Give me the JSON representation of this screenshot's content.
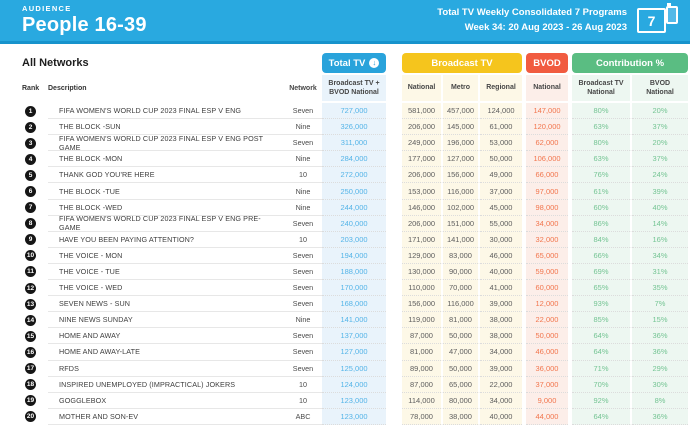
{
  "header": {
    "eyebrow": "AUDIENCE",
    "title": "People 16-39",
    "report_line1": "Total TV Weekly Consolidated 7 Programs",
    "report_line2": "Week 34: 20 Aug 2023 - 26 Aug 2023",
    "programs_count": "7"
  },
  "filters": {
    "network_selector": "All Networks"
  },
  "icons": {
    "sort_descending": "↓"
  },
  "colors": {
    "topbar": "#29A9E0",
    "total_tv": "#29A3DB",
    "broadcast_tv": "#F5C51D",
    "bvod": "#F15B40",
    "contribution": "#5ABD82",
    "total_tv_value": "#54B4E8",
    "bvod_value": "#F2764E",
    "contribution_value": "#74C493"
  },
  "table": {
    "row_headers": {
      "rank": "Rank",
      "description": "Description",
      "network": "Network"
    },
    "groups": {
      "total_tv": "Total TV",
      "broadcast_tv": "Broadcast TV",
      "bvod": "BVOD",
      "contribution": "Contribution %"
    },
    "subcolumns": {
      "total_tv_line1": "Broadcast TV +",
      "total_tv_line2": "BVOD National",
      "broadcast_national": "National",
      "broadcast_metro": "Metro",
      "broadcast_regional": "Regional",
      "bvod_national": "National",
      "contribution_broadcast_line1": "Broadcast TV",
      "contribution_broadcast_line2": "National",
      "contribution_bvod_line1": "BVOD",
      "contribution_bvod_line2": "National"
    }
  },
  "rows": [
    {
      "rank": "1",
      "description": "FIFA WOMEN'S WORLD CUP 2023 FINAL ESP V ENG",
      "network": "Seven",
      "total_tv": "727,000",
      "national": "581,000",
      "metro": "457,000",
      "regional": "124,000",
      "bvod": "147,000",
      "contribution_broadcast": "80%",
      "contribution_bvod": "20%"
    },
    {
      "rank": "2",
      "description": "THE BLOCK -SUN",
      "network": "Nine",
      "total_tv": "326,000",
      "national": "206,000",
      "metro": "145,000",
      "regional": "61,000",
      "bvod": "120,000",
      "contribution_broadcast": "63%",
      "contribution_bvod": "37%"
    },
    {
      "rank": "3",
      "description": "FIFA WOMEN'S WORLD CUP 2023 FINAL ESP V ENG POST GAME",
      "network": "Seven",
      "total_tv": "311,000",
      "national": "249,000",
      "metro": "196,000",
      "regional": "53,000",
      "bvod": "62,000",
      "contribution_broadcast": "80%",
      "contribution_bvod": "20%"
    },
    {
      "rank": "4",
      "description": "THE BLOCK -MON",
      "network": "Nine",
      "total_tv": "284,000",
      "national": "177,000",
      "metro": "127,000",
      "regional": "50,000",
      "bvod": "106,000",
      "contribution_broadcast": "63%",
      "contribution_bvod": "37%"
    },
    {
      "rank": "5",
      "description": "THANK GOD YOU'RE HERE",
      "network": "10",
      "total_tv": "272,000",
      "national": "206,000",
      "metro": "156,000",
      "regional": "49,000",
      "bvod": "66,000",
      "contribution_broadcast": "76%",
      "contribution_bvod": "24%"
    },
    {
      "rank": "6",
      "description": "THE BLOCK -TUE",
      "network": "Nine",
      "total_tv": "250,000",
      "national": "153,000",
      "metro": "116,000",
      "regional": "37,000",
      "bvod": "97,000",
      "contribution_broadcast": "61%",
      "contribution_bvod": "39%"
    },
    {
      "rank": "7",
      "description": "THE BLOCK -WED",
      "network": "Nine",
      "total_tv": "244,000",
      "national": "146,000",
      "metro": "102,000",
      "regional": "45,000",
      "bvod": "98,000",
      "contribution_broadcast": "60%",
      "contribution_bvod": "40%"
    },
    {
      "rank": "8",
      "description": "FIFA WOMEN'S WORLD CUP 2023 FINAL ESP V ENG PRE-GAME",
      "network": "Seven",
      "total_tv": "240,000",
      "national": "206,000",
      "metro": "151,000",
      "regional": "55,000",
      "bvod": "34,000",
      "contribution_broadcast": "86%",
      "contribution_bvod": "14%"
    },
    {
      "rank": "9",
      "description": "HAVE YOU BEEN PAYING ATTENTION?",
      "network": "10",
      "total_tv": "203,000",
      "national": "171,000",
      "metro": "141,000",
      "regional": "30,000",
      "bvod": "32,000",
      "contribution_broadcast": "84%",
      "contribution_bvod": "16%"
    },
    {
      "rank": "10",
      "description": "THE VOICE - MON",
      "network": "Seven",
      "total_tv": "194,000",
      "national": "129,000",
      "metro": "83,000",
      "regional": "46,000",
      "bvod": "65,000",
      "contribution_broadcast": "66%",
      "contribution_bvod": "34%"
    },
    {
      "rank": "11",
      "description": "THE VOICE - TUE",
      "network": "Seven",
      "total_tv": "188,000",
      "national": "130,000",
      "metro": "90,000",
      "regional": "40,000",
      "bvod": "59,000",
      "contribution_broadcast": "69%",
      "contribution_bvod": "31%"
    },
    {
      "rank": "12",
      "description": "THE VOICE - WED",
      "network": "Seven",
      "total_tv": "170,000",
      "national": "110,000",
      "metro": "70,000",
      "regional": "41,000",
      "bvod": "60,000",
      "contribution_broadcast": "65%",
      "contribution_bvod": "35%"
    },
    {
      "rank": "13",
      "description": "SEVEN NEWS - SUN",
      "network": "Seven",
      "total_tv": "168,000",
      "national": "156,000",
      "metro": "116,000",
      "regional": "39,000",
      "bvod": "12,000",
      "contribution_broadcast": "93%",
      "contribution_bvod": "7%"
    },
    {
      "rank": "14",
      "description": "NINE NEWS SUNDAY",
      "network": "Nine",
      "total_tv": "141,000",
      "national": "119,000",
      "metro": "81,000",
      "regional": "38,000",
      "bvod": "22,000",
      "contribution_broadcast": "85%",
      "contribution_bvod": "15%"
    },
    {
      "rank": "15",
      "description": "HOME AND AWAY",
      "network": "Seven",
      "total_tv": "137,000",
      "national": "87,000",
      "metro": "50,000",
      "regional": "38,000",
      "bvod": "50,000",
      "contribution_broadcast": "64%",
      "contribution_bvod": "36%"
    },
    {
      "rank": "16",
      "description": "HOME AND AWAY-LATE",
      "network": "Seven",
      "total_tv": "127,000",
      "national": "81,000",
      "metro": "47,000",
      "regional": "34,000",
      "bvod": "46,000",
      "contribution_broadcast": "64%",
      "contribution_bvod": "36%"
    },
    {
      "rank": "17",
      "description": "RFDS",
      "network": "Seven",
      "total_tv": "125,000",
      "national": "89,000",
      "metro": "50,000",
      "regional": "39,000",
      "bvod": "36,000",
      "contribution_broadcast": "71%",
      "contribution_bvod": "29%"
    },
    {
      "rank": "18",
      "description": "INSPIRED UNEMPLOYED (IMPRACTICAL) JOKERS",
      "network": "10",
      "total_tv": "124,000",
      "national": "87,000",
      "metro": "65,000",
      "regional": "22,000",
      "bvod": "37,000",
      "contribution_broadcast": "70%",
      "contribution_bvod": "30%"
    },
    {
      "rank": "19",
      "description": "GOGGLEBOX",
      "network": "10",
      "total_tv": "123,000",
      "national": "114,000",
      "metro": "80,000",
      "regional": "34,000",
      "bvod": "9,000",
      "contribution_broadcast": "92%",
      "contribution_bvod": "8%"
    },
    {
      "rank": "20",
      "description": "MOTHER AND SON-EV",
      "network": "ABC",
      "total_tv": "123,000",
      "national": "78,000",
      "metro": "38,000",
      "regional": "40,000",
      "bvod": "44,000",
      "contribution_broadcast": "64%",
      "contribution_bvod": "36%"
    }
  ]
}
